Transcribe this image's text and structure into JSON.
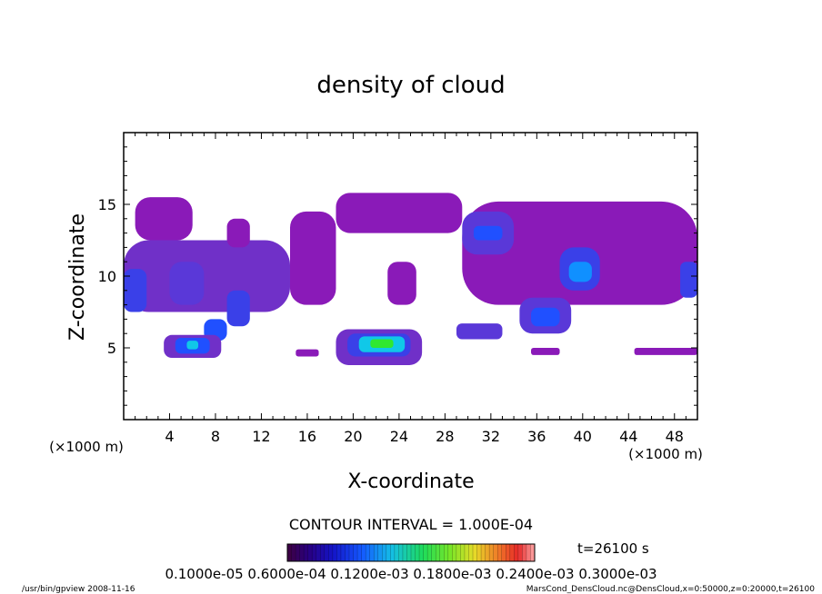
{
  "chart_data": {
    "type": "heatmap",
    "title": "density of cloud",
    "xlabel": "X-coordinate",
    "ylabel": "Z-coordinate",
    "x_unit": "(×1000 m)",
    "y_unit": "(×1000 m)",
    "xlim": [
      0,
      50
    ],
    "ylim": [
      0,
      20
    ],
    "x_ticks": [
      4,
      8,
      12,
      16,
      20,
      24,
      28,
      32,
      36,
      40,
      44,
      48
    ],
    "y_ticks": [
      5,
      10,
      15
    ],
    "x_tick_labels": [
      "4",
      "8",
      "12",
      "16",
      "20",
      "24",
      "28",
      "32",
      "36",
      "40",
      "44",
      "48"
    ],
    "y_tick_labels": [
      "5",
      "10",
      "15"
    ],
    "contour_interval": "CONTOUR INTERVAL = 1.000E-04",
    "time_label": "t=26100 s",
    "colorbar_labels": "0.1000e-05  0.6000e-04  0.1200e-03  0.1800e-03  0.2400e-03  0.3000e-03",
    "colorbar_min": 1e-06,
    "colorbar_max": 0.0003,
    "levels": [
      1e-06,
      1e-05,
      2e-05,
      4e-05,
      6e-05,
      9e-05,
      0.00012,
      0.00015,
      0.00018,
      0.00021,
      0.00024
    ],
    "level_colors": [
      "#8a1ab8",
      "#7030c8",
      "#5a38d8",
      "#3a40e8",
      "#2050ff",
      "#1090ff",
      "#10c8e8",
      "#10d880",
      "#30e830",
      "#90e820",
      "#e8e020"
    ],
    "cells": [
      {
        "x": [
          0,
          14.5
        ],
        "z": [
          7.5,
          12.5
        ],
        "level": 1
      },
      {
        "x": [
          1,
          6
        ],
        "z": [
          12.5,
          15.5
        ],
        "level": 0
      },
      {
        "x": [
          9,
          11
        ],
        "z": [
          12,
          14
        ],
        "level": 0
      },
      {
        "x": [
          0,
          2
        ],
        "z": [
          7.5,
          10.5
        ],
        "level": 3
      },
      {
        "x": [
          4,
          7
        ],
        "z": [
          8,
          11
        ],
        "level": 2
      },
      {
        "x": [
          9,
          11
        ],
        "z": [
          6.5,
          9
        ],
        "level": 3
      },
      {
        "x": [
          7,
          9
        ],
        "z": [
          5.5,
          7
        ],
        "level": 4
      },
      {
        "x": [
          3.5,
          8.5
        ],
        "z": [
          4.3,
          5.9
        ],
        "level": 1
      },
      {
        "x": [
          4.5,
          7.5
        ],
        "z": [
          4.6,
          5.7
        ],
        "level": 4
      },
      {
        "x": [
          5.5,
          6.5
        ],
        "z": [
          4.9,
          5.5
        ],
        "level": 6
      },
      {
        "x": [
          14.5,
          18.5
        ],
        "z": [
          8,
          14.5
        ],
        "level": 0
      },
      {
        "x": [
          15,
          17
        ],
        "z": [
          4.4,
          4.9
        ],
        "level": 0
      },
      {
        "x": [
          18.5,
          29.5
        ],
        "z": [
          13,
          15.8
        ],
        "level": 0
      },
      {
        "x": [
          23,
          25.5
        ],
        "z": [
          8,
          11
        ],
        "level": 0
      },
      {
        "x": [
          18.5,
          26
        ],
        "z": [
          3.8,
          6.3
        ],
        "level": 1
      },
      {
        "x": [
          19.5,
          25
        ],
        "z": [
          4.4,
          6
        ],
        "level": 3
      },
      {
        "x": [
          20.5,
          24.5
        ],
        "z": [
          4.7,
          5.8
        ],
        "level": 6
      },
      {
        "x": [
          21.5,
          23.5
        ],
        "z": [
          5,
          5.6
        ],
        "level": 8
      },
      {
        "x": [
          29.5,
          50
        ],
        "z": [
          8,
          15.2
        ],
        "level": 0
      },
      {
        "x": [
          29.5,
          34
        ],
        "z": [
          11.5,
          14.5
        ],
        "level": 2
      },
      {
        "x": [
          30.5,
          33
        ],
        "z": [
          12.5,
          13.5
        ],
        "level": 4
      },
      {
        "x": [
          38,
          41.5
        ],
        "z": [
          9,
          12
        ],
        "level": 3
      },
      {
        "x": [
          38.8,
          40.8
        ],
        "z": [
          9.6,
          11
        ],
        "level": 5
      },
      {
        "x": [
          34.5,
          39
        ],
        "z": [
          6,
          8.5
        ],
        "level": 2
      },
      {
        "x": [
          35.5,
          38
        ],
        "z": [
          6.5,
          7.8
        ],
        "level": 4
      },
      {
        "x": [
          29,
          33
        ],
        "z": [
          5.6,
          6.7
        ],
        "level": 2
      },
      {
        "x": [
          35.5,
          38
        ],
        "z": [
          4.5,
          5
        ],
        "level": 0
      },
      {
        "x": [
          44.5,
          50
        ],
        "z": [
          4.5,
          5
        ],
        "level": 0
      },
      {
        "x": [
          48.5,
          50
        ],
        "z": [
          8.5,
          11
        ],
        "level": 3
      }
    ]
  },
  "footer": {
    "left": "/usr/bin/gpview   2008-11-16",
    "right": "MarsCond_DensCloud.nc@DensCloud,x=0:50000,z=0:20000,t=26100"
  }
}
